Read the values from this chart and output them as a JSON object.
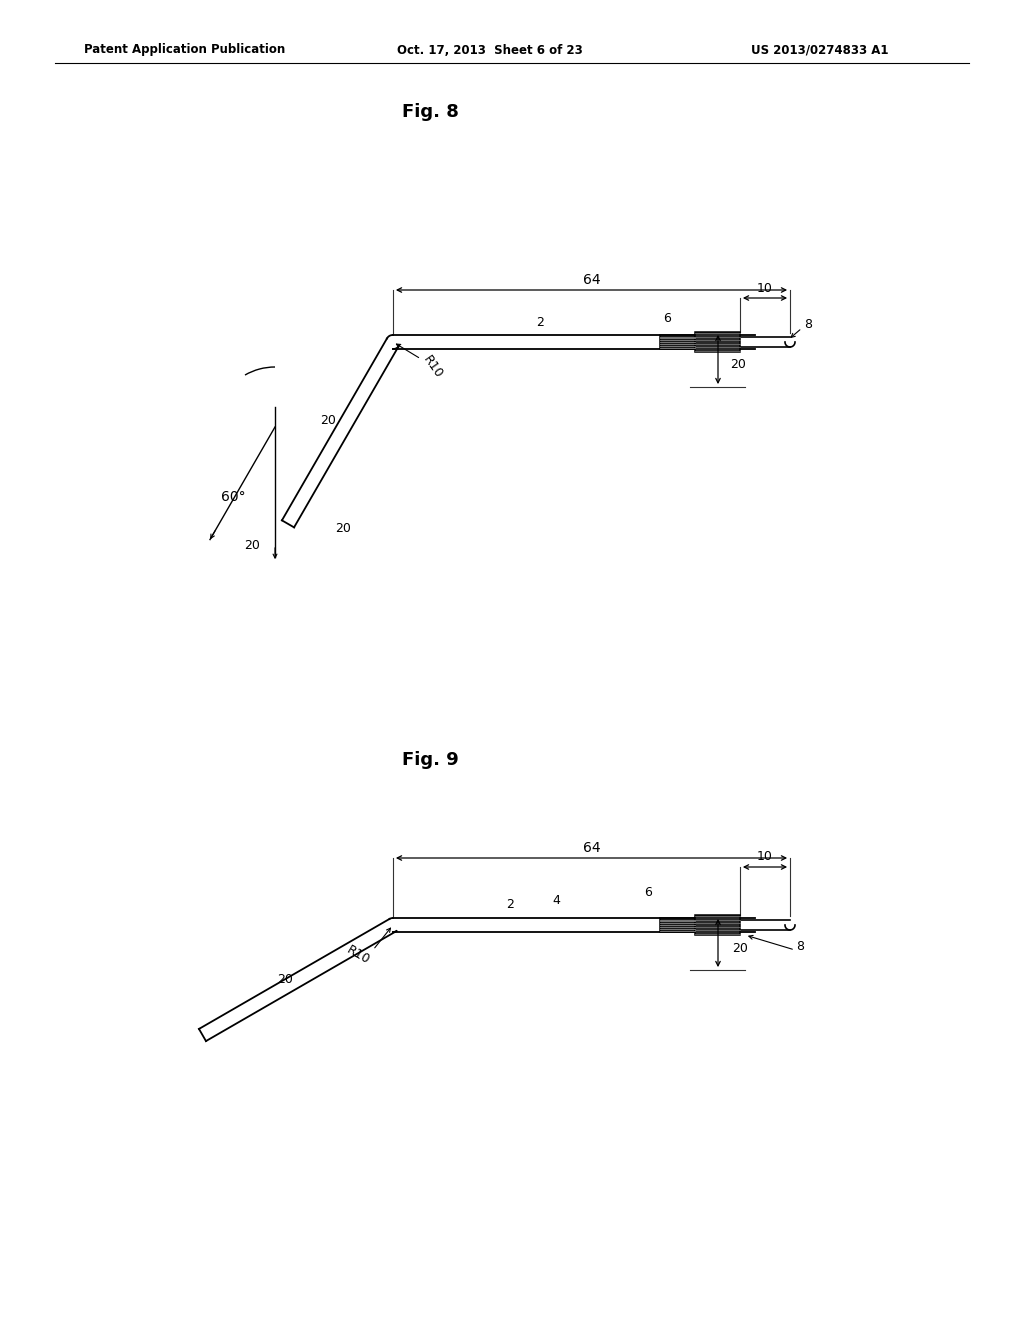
{
  "header_left": "Patent Application Publication",
  "header_center": "Oct. 17, 2013  Sheet 6 of 23",
  "header_right": "US 2013/0274833 A1",
  "fig8_title": "Fig. 8",
  "fig9_title": "Fig. 9",
  "background_color": "#ffffff"
}
